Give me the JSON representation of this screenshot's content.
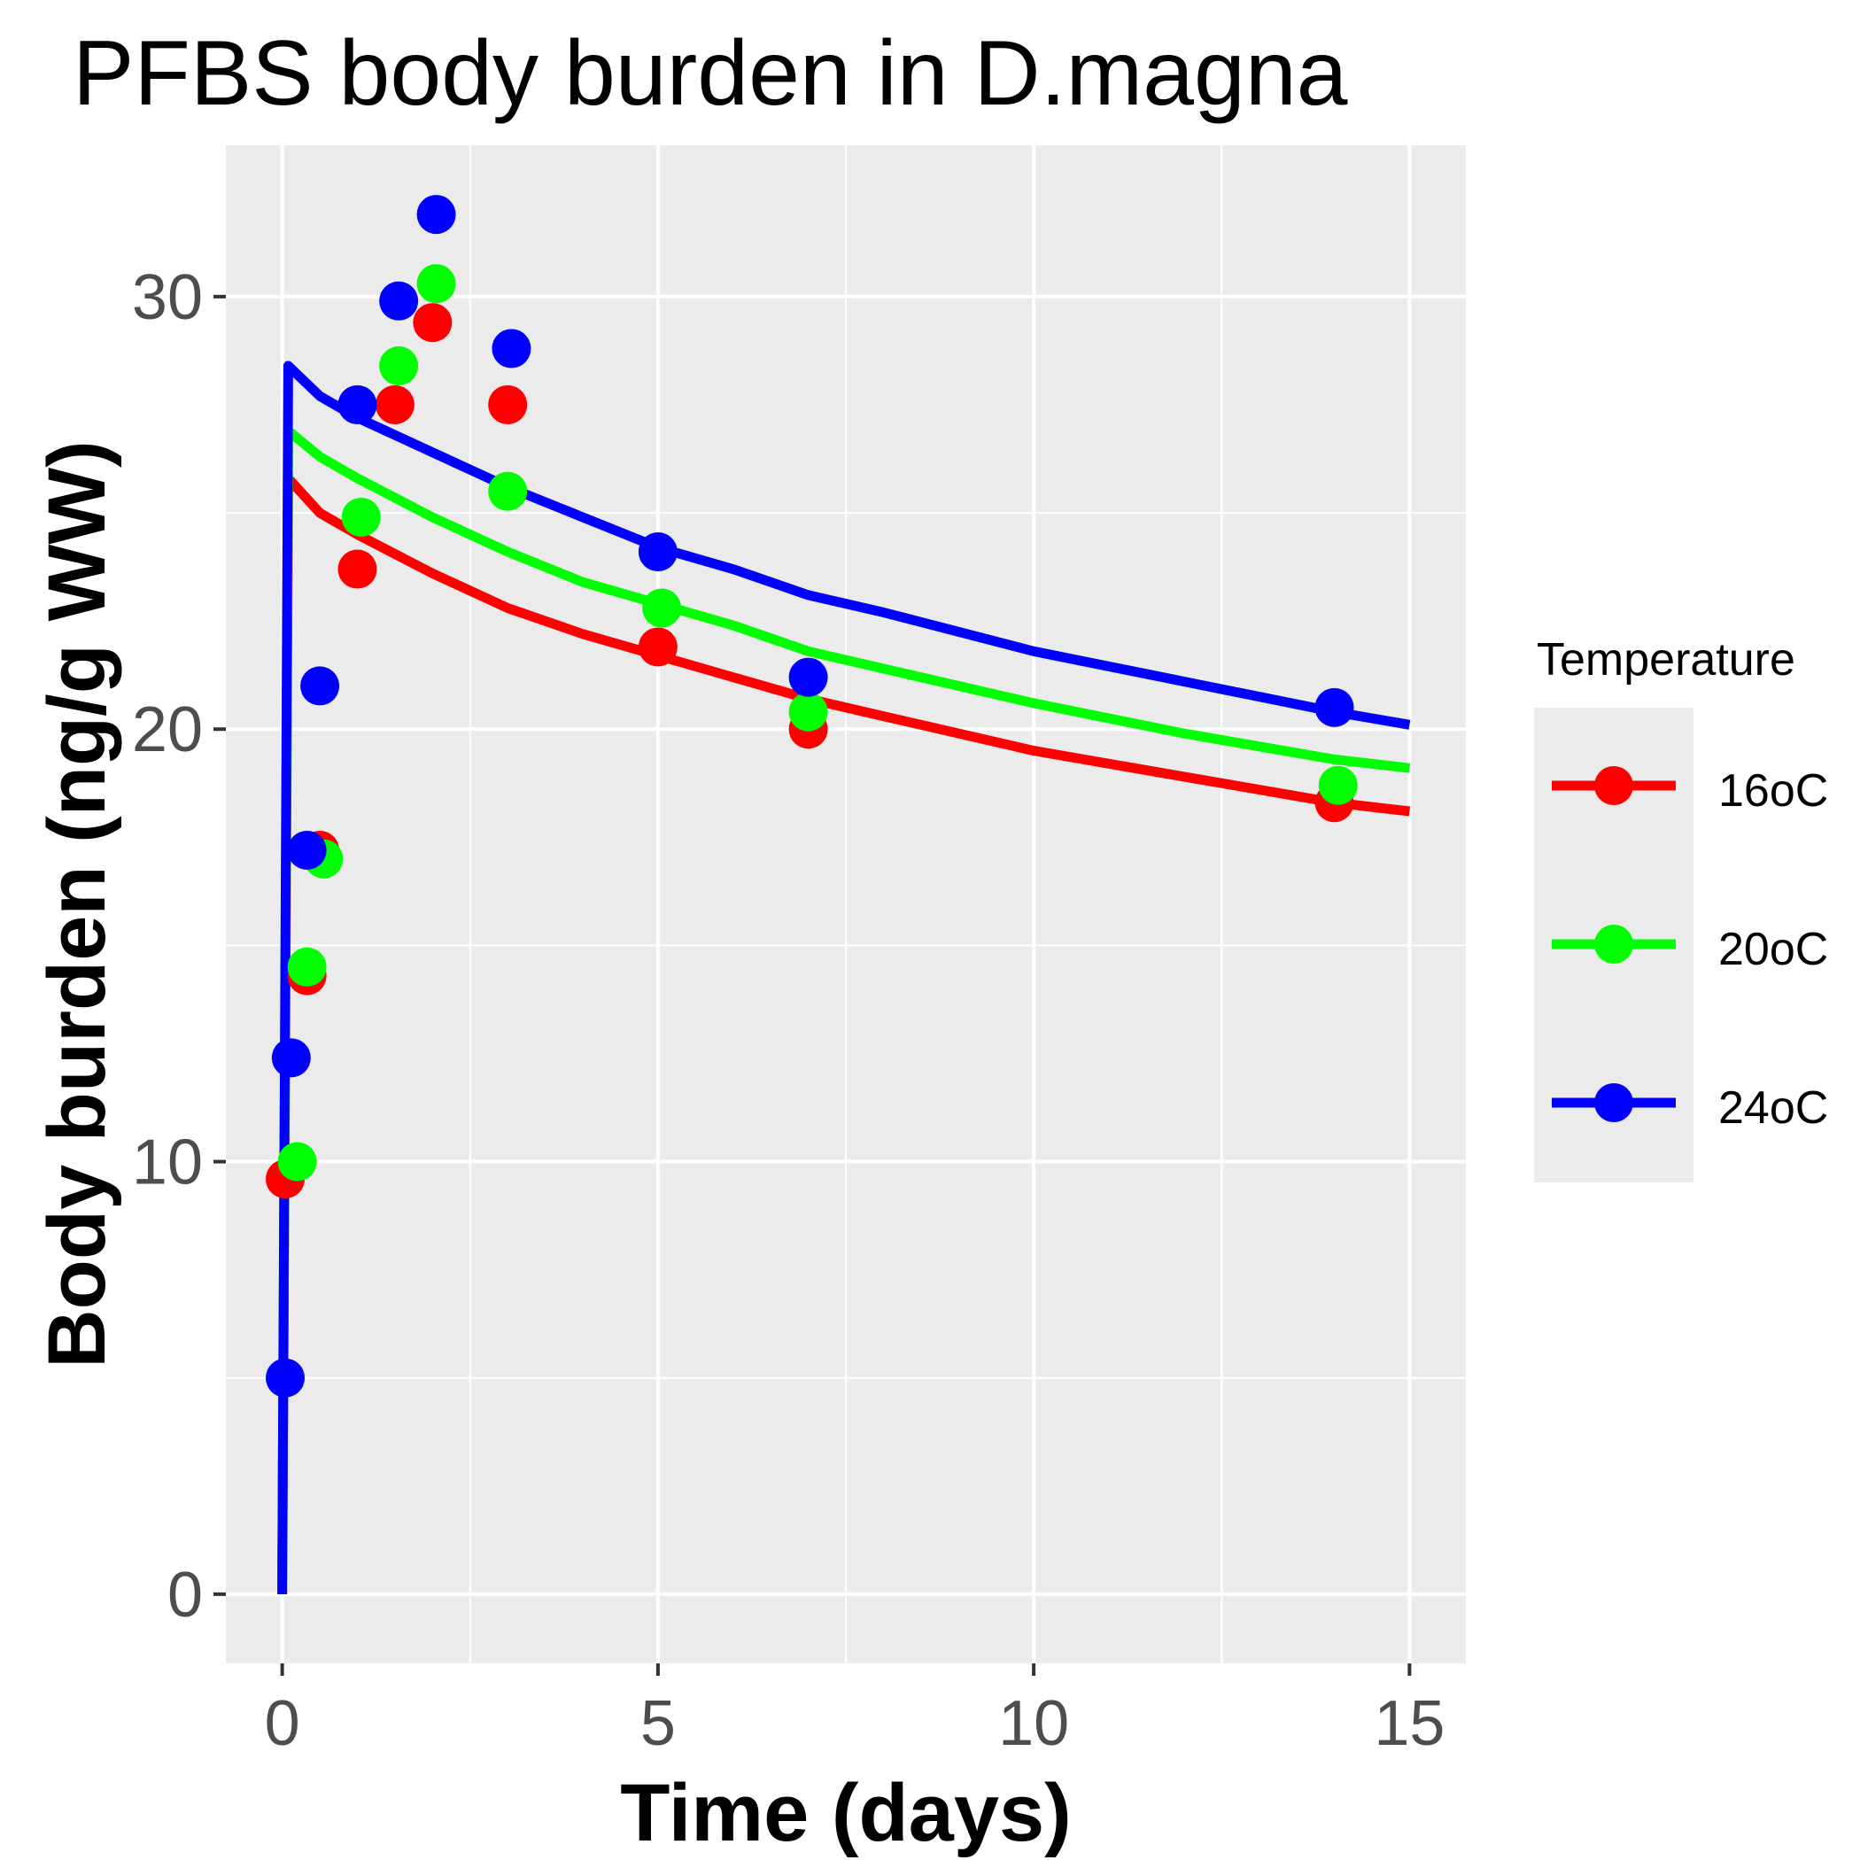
{
  "chart_data": {
    "type": "scatter",
    "title": "PFBS body burden in D.magna",
    "xlabel": "Time (days)",
    "ylabel": "Body burden (ng/g WW)",
    "xlim": [
      -0.75,
      15.75
    ],
    "ylim": [
      -1.6,
      33.5
    ],
    "x_ticks": [
      0,
      5,
      10,
      15
    ],
    "x_tick_labels": [
      "0",
      "5",
      "10",
      "15"
    ],
    "y_ticks": [
      0,
      10,
      20,
      30
    ],
    "y_tick_labels": [
      "0",
      "10",
      "20",
      "30"
    ],
    "grid": true,
    "legend_position": "right",
    "legend": {
      "title": "Temperature",
      "entries": [
        "16oC",
        "20oC",
        "24oC"
      ]
    },
    "series": [
      {
        "name": "16oC",
        "color": "#ff0000",
        "points": [
          {
            "x": 0.04,
            "y": 9.6
          },
          {
            "x": 0.33,
            "y": 14.3
          },
          {
            "x": 0.5,
            "y": 17.2
          },
          {
            "x": 1.0,
            "y": 23.7
          },
          {
            "x": 1.5,
            "y": 27.5
          },
          {
            "x": 2.0,
            "y": 29.4
          },
          {
            "x": 3.0,
            "y": 27.5
          },
          {
            "x": 5.0,
            "y": 21.9
          },
          {
            "x": 7.0,
            "y": 20.0
          },
          {
            "x": 14.0,
            "y": 18.3
          }
        ],
        "fit": {
          "x": [
            0,
            0.08,
            0.5,
            1,
            2,
            3,
            4,
            5,
            6,
            7,
            8,
            10,
            12,
            14,
            15
          ],
          "y": [
            0,
            25.8,
            25.0,
            24.5,
            23.6,
            22.8,
            22.2,
            21.7,
            21.2,
            20.7,
            20.3,
            19.5,
            18.9,
            18.3,
            18.1
          ]
        }
      },
      {
        "name": "20oC",
        "color": "#00ff00",
        "points": [
          {
            "x": 0.2,
            "y": 10.0
          },
          {
            "x": 0.33,
            "y": 14.5
          },
          {
            "x": 0.55,
            "y": 17.0
          },
          {
            "x": 1.05,
            "y": 24.9
          },
          {
            "x": 1.55,
            "y": 28.4
          },
          {
            "x": 2.05,
            "y": 30.3
          },
          {
            "x": 3.0,
            "y": 25.5
          },
          {
            "x": 5.05,
            "y": 22.8
          },
          {
            "x": 7.0,
            "y": 20.4
          },
          {
            "x": 14.05,
            "y": 18.7
          }
        ],
        "fit": {
          "x": [
            0,
            0.08,
            0.5,
            1,
            2,
            3,
            4,
            5,
            6,
            7,
            8,
            10,
            12,
            14,
            15
          ],
          "y": [
            0,
            26.9,
            26.3,
            25.8,
            24.9,
            24.1,
            23.4,
            22.9,
            22.4,
            21.8,
            21.4,
            20.6,
            19.9,
            19.3,
            19.1
          ]
        }
      },
      {
        "name": "24oC",
        "color": "#0000ff",
        "points": [
          {
            "x": 0.04,
            "y": 5.0
          },
          {
            "x": 0.12,
            "y": 12.4
          },
          {
            "x": 0.33,
            "y": 17.2
          },
          {
            "x": 0.5,
            "y": 21.0
          },
          {
            "x": 1.0,
            "y": 27.5
          },
          {
            "x": 1.55,
            "y": 29.9
          },
          {
            "x": 2.05,
            "y": 31.9
          },
          {
            "x": 3.05,
            "y": 28.8
          },
          {
            "x": 5.0,
            "y": 24.1
          },
          {
            "x": 7.0,
            "y": 21.2
          },
          {
            "x": 14.0,
            "y": 20.5
          }
        ],
        "fit": {
          "x": [
            0,
            0.08,
            0.5,
            1,
            2,
            3,
            4,
            5,
            6,
            7,
            8,
            10,
            12,
            14,
            15
          ],
          "y": [
            0,
            28.4,
            27.7,
            27.2,
            26.4,
            25.6,
            24.9,
            24.2,
            23.7,
            23.1,
            22.7,
            21.8,
            21.1,
            20.4,
            20.1
          ]
        }
      }
    ]
  }
}
